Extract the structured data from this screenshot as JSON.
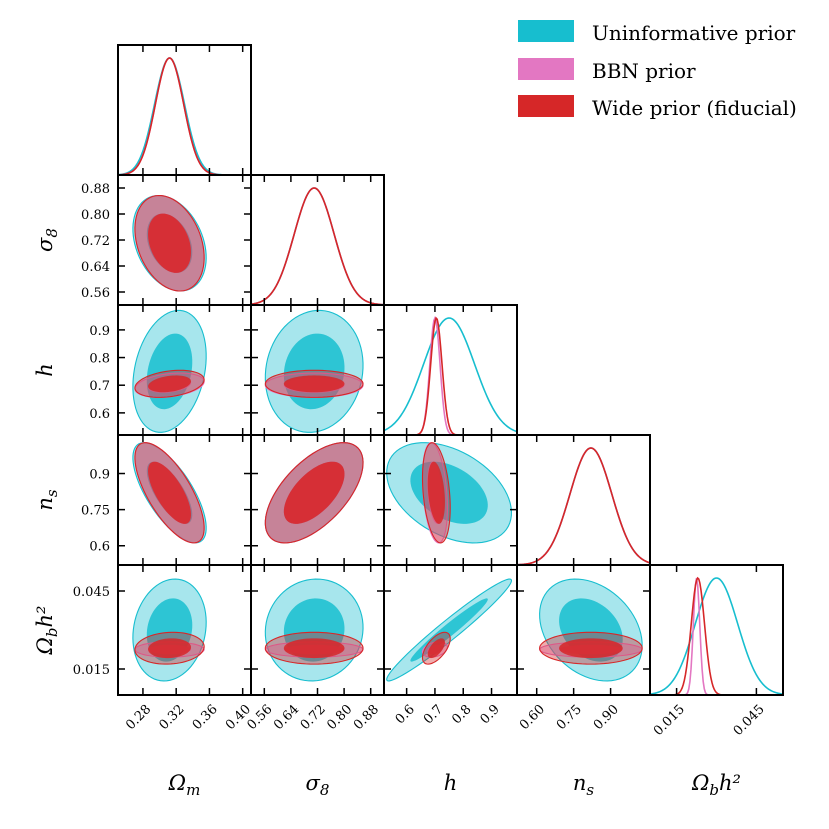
{
  "legend": [
    {
      "label": "Uninformative prior",
      "color": "#17becf"
    },
    {
      "label": "BBN prior",
      "color": "#e377c2"
    },
    {
      "label": "Wide prior (fiducial)",
      "color": "#d62728"
    }
  ],
  "chart_data": {
    "type": "corner",
    "title": "",
    "params": [
      {
        "key": "Om",
        "label": "Ωm",
        "label_main": "Ω",
        "label_sub": "m",
        "label_sup": "",
        "lim": [
          0.25,
          0.41
        ],
        "ticks": [
          0.28,
          0.32,
          0.36,
          0.4
        ],
        "tick_labels": [
          "0.28",
          "0.32",
          "0.36",
          "0.40"
        ]
      },
      {
        "key": "s8",
        "label": "σ8",
        "label_main": "σ",
        "label_sub": "8",
        "label_sup": "",
        "lim": [
          0.52,
          0.92
        ],
        "ticks": [
          0.56,
          0.64,
          0.72,
          0.8,
          0.88
        ],
        "tick_labels": [
          "0.56",
          "0.64",
          "0.72",
          "0.80",
          "0.88"
        ]
      },
      {
        "key": "h",
        "label": "h",
        "label_main": "h",
        "label_sub": "",
        "label_sup": "",
        "lim": [
          0.52,
          0.99
        ],
        "ticks": [
          0.6,
          0.7,
          0.8,
          0.9
        ],
        "tick_labels": [
          "0.6",
          "0.7",
          "0.8",
          "0.9"
        ]
      },
      {
        "key": "ns",
        "label": "ns",
        "label_main": "n",
        "label_sub": "s",
        "label_sup": "",
        "lim": [
          0.52,
          1.06
        ],
        "ticks": [
          0.6,
          0.75,
          0.9
        ],
        "tick_labels": [
          "0.60",
          "0.75",
          "0.90"
        ],
        "y_tick_labels": [
          "0.6",
          "0.75",
          "0.9"
        ]
      },
      {
        "key": "Obh2",
        "label": "Ωbh2",
        "label_main": "Ω",
        "label_sub": "b",
        "label_sup": "h²",
        "lim": [
          0.005,
          0.055
        ],
        "ticks": [
          0.015,
          0.045
        ],
        "tick_labels": [
          "0.015",
          "0.045"
        ]
      }
    ],
    "series": [
      {
        "name": "Uninformative prior",
        "color": "#17becf",
        "means": [
          0.312,
          0.71,
          0.75,
          0.82,
          0.03
        ],
        "sigmas": [
          0.018,
          0.06,
          0.09,
          0.085,
          0.008
        ],
        "corr": [
          [
            1,
            -0.3,
            0.25,
            -0.7,
            0.15
          ],
          [
            -0.3,
            1,
            0.1,
            0.6,
            0.05
          ],
          [
            0.25,
            0.1,
            1,
            -0.4,
            0.97
          ],
          [
            -0.7,
            0.6,
            -0.4,
            1,
            -0.3
          ],
          [
            0.15,
            0.05,
            0.97,
            -0.3,
            1
          ]
        ]
      },
      {
        "name": "BBN prior",
        "color": "#e377c2",
        "means": [
          0.312,
          0.71,
          0.7,
          0.82,
          0.0225
        ],
        "sigmas": [
          0.017,
          0.06,
          0.018,
          0.085,
          0.0012
        ],
        "corr": [
          [
            1,
            -0.3,
            0.3,
            -0.7,
            0.0
          ],
          [
            -0.3,
            1,
            0.0,
            0.6,
            0.0
          ],
          [
            0.3,
            0.0,
            1,
            -0.3,
            0.3
          ],
          [
            -0.7,
            0.6,
            -0.3,
            1,
            0.0
          ],
          [
            0.0,
            0.0,
            0.3,
            0.0,
            1
          ]
        ]
      },
      {
        "name": "Wide prior (fiducial)",
        "color": "#d62728",
        "means": [
          0.312,
          0.71,
          0.705,
          0.82,
          0.023
        ],
        "sigmas": [
          0.017,
          0.06,
          0.02,
          0.085,
          0.0025
        ],
        "corr": [
          [
            1,
            -0.3,
            0.3,
            -0.7,
            0.1
          ],
          [
            -0.3,
            1,
            0.0,
            0.6,
            0.0
          ],
          [
            0.3,
            0.0,
            1,
            -0.3,
            0.6
          ],
          [
            -0.7,
            0.6,
            -0.3,
            1,
            0.0
          ],
          [
            0.1,
            0.0,
            0.6,
            0.0,
            1
          ]
        ]
      }
    ],
    "contour_levels": [
      "68%",
      "95%"
    ]
  }
}
